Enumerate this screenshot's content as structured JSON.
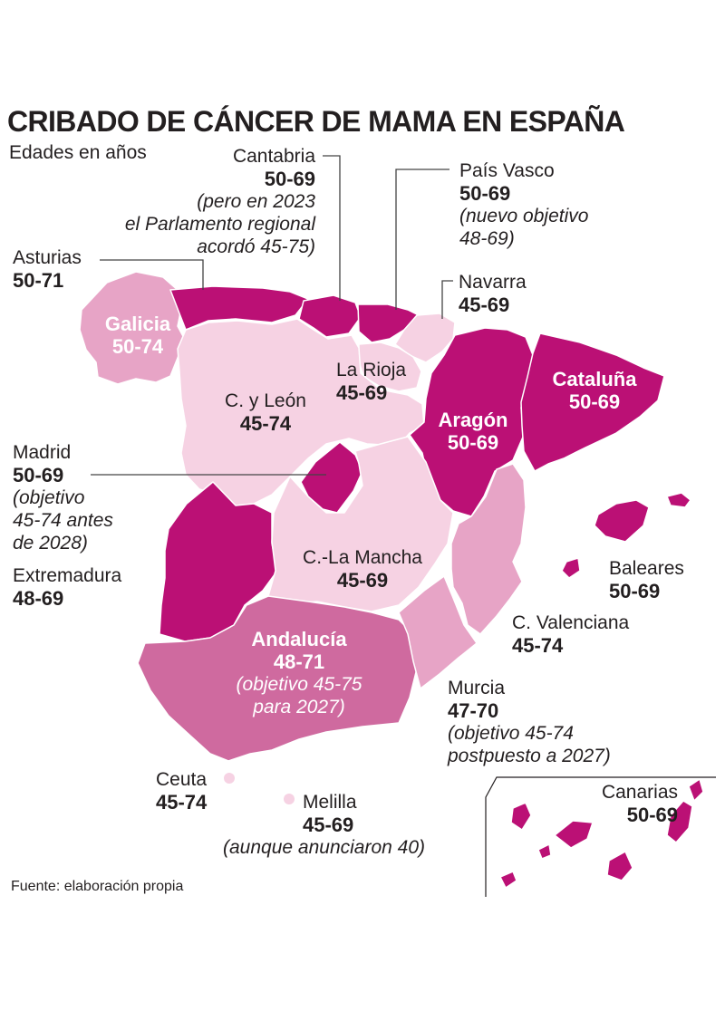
{
  "header": {
    "title": "CRIBADO DE CÁNCER DE MAMA EN ESPAÑA",
    "subtitle": "Edades en años"
  },
  "source": "Fuente: elaboración propia",
  "colors": {
    "dark": "#bb1075",
    "medium": "#cf6a9f",
    "light_medium": "#e7a4c6",
    "light": "#f6d2e3",
    "text": "#231f20",
    "leader": "#444444"
  },
  "regions": {
    "galicia": {
      "name": "Galicia",
      "ages": "50-74",
      "color": "light_medium"
    },
    "asturias": {
      "name": "Asturias",
      "ages": "50-71",
      "color": "dark"
    },
    "cantabria": {
      "name": "Cantabria",
      "ages": "50-69",
      "note": [
        "(pero en 2023",
        "el Parlamento regional",
        "acordó 45-75)"
      ],
      "color": "dark"
    },
    "pais_vasco": {
      "name": "País Vasco",
      "ages": "50-69",
      "note": [
        "(nuevo objetivo",
        "48-69)"
      ],
      "color": "dark"
    },
    "navarra": {
      "name": "Navarra",
      "ages": "45-69",
      "color": "light"
    },
    "la_rioja": {
      "name": "La Rioja",
      "ages": "45-69",
      "color": "light"
    },
    "castilla_leon": {
      "name": "C. y León",
      "ages": "45-74",
      "color": "light"
    },
    "aragon": {
      "name": "Aragón",
      "ages": "50-69",
      "color": "dark"
    },
    "cataluna": {
      "name": "Cataluña",
      "ages": "50-69",
      "color": "dark"
    },
    "madrid": {
      "name": "Madrid",
      "ages": "50-69",
      "note": [
        "(objetivo",
        "45-74 antes",
        "de 2028)"
      ],
      "color": "dark"
    },
    "extremadura": {
      "name": "Extremadura",
      "ages": "48-69",
      "color": "dark"
    },
    "castilla_la_mancha": {
      "name": "C.-La Mancha",
      "ages": "45-69",
      "color": "light"
    },
    "valenciana": {
      "name": "C. Valenciana",
      "ages": "45-74",
      "color": "light_medium"
    },
    "baleares": {
      "name": "Baleares",
      "ages": "50-69",
      "color": "dark"
    },
    "andalucia": {
      "name": "Andalucía",
      "ages": "48-71",
      "note": [
        "(objetivo 45-75",
        "para 2027)"
      ],
      "color": "medium"
    },
    "murcia": {
      "name": "Murcia",
      "ages": "47-70",
      "note": [
        "(objetivo 45-74",
        "postpuesto a 2027)"
      ],
      "color": "light_medium"
    },
    "ceuta": {
      "name": "Ceuta",
      "ages": "45-74",
      "color": "light"
    },
    "melilla": {
      "name": "Melilla",
      "ages": "45-69",
      "note": [
        "(aunque anunciaron 40)"
      ],
      "color": "light"
    },
    "canarias": {
      "name": "Canarias",
      "ages": "50-69",
      "color": "dark"
    }
  }
}
